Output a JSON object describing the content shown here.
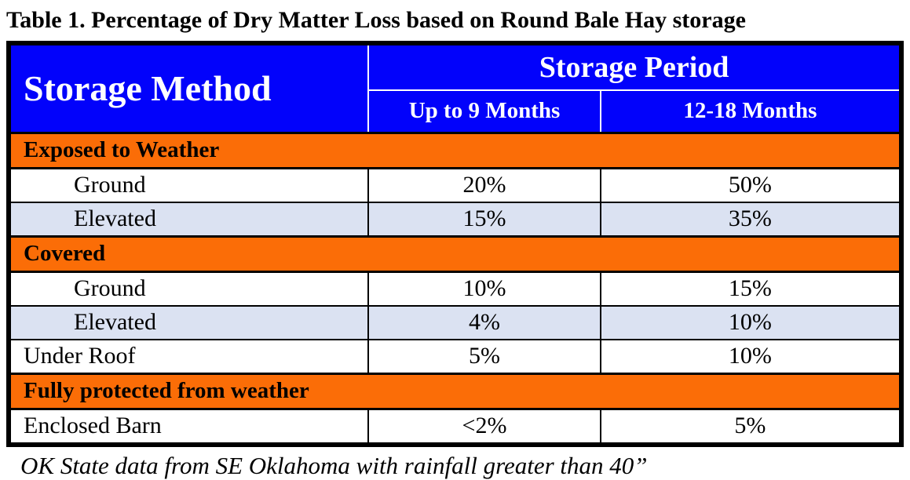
{
  "title": "Table 1. Percentage of Dry Matter Loss based on Round Bale Hay storage",
  "colors": {
    "header-blue": "#0202fb",
    "section-orange": "#fb6d07",
    "row-alt": "#dbe2f2",
    "border-black": "#000000",
    "header-text": "#ffffff"
  },
  "chart_data": {
    "type": "table",
    "title": "Table 1. Percentage of Dry Matter Loss based on Round Bale Hay storage",
    "columns": [
      "Storage Method",
      "Up to 9 Months",
      "12-18 Months"
    ],
    "column_group": "Storage Period",
    "sections": [
      {
        "label": "Exposed to Weather",
        "rows": [
          {
            "label": "Ground",
            "values": [
              "20%",
              "50%"
            ]
          },
          {
            "label": "Elevated",
            "values": [
              "15%",
              "35%"
            ]
          }
        ]
      },
      {
        "label": "Covered",
        "rows": [
          {
            "label": "Ground",
            "values": [
              "10%",
              "15%"
            ]
          },
          {
            "label": "Elevated",
            "values": [
              "4%",
              "10%"
            ]
          },
          {
            "label": "Under Roof",
            "values": [
              "5%",
              "10%"
            ]
          }
        ]
      },
      {
        "label": "Fully protected from weather",
        "rows": [
          {
            "label": "Enclosed Barn",
            "values": [
              "<2%",
              "5%"
            ]
          }
        ]
      }
    ]
  },
  "table": {
    "col1_header": "Storage Method",
    "group_header": "Storage Period",
    "sub_headers": [
      "Up to 9 Months",
      "12-18 Months"
    ],
    "sections": [
      {
        "label": "Exposed to Weather",
        "rows": [
          {
            "label": "Ground",
            "v1": "20%",
            "v2": "50%"
          },
          {
            "label": "Elevated",
            "v1": "15%",
            "v2": "35%"
          }
        ]
      },
      {
        "label": "Covered",
        "rows": [
          {
            "label": "Ground",
            "v1": "10%",
            "v2": "15%"
          },
          {
            "label": "Elevated",
            "v1": "4%",
            "v2": "10%"
          },
          {
            "label": "Under Roof",
            "v1": "5%",
            "v2": "10%"
          }
        ]
      },
      {
        "label": "Fully protected from weather",
        "rows": [
          {
            "label": "Enclosed Barn",
            "v1": "<2%",
            "v2": "5%"
          }
        ]
      }
    ]
  },
  "footnote": "OK State data from SE Oklahoma with rainfall greater than 40”"
}
